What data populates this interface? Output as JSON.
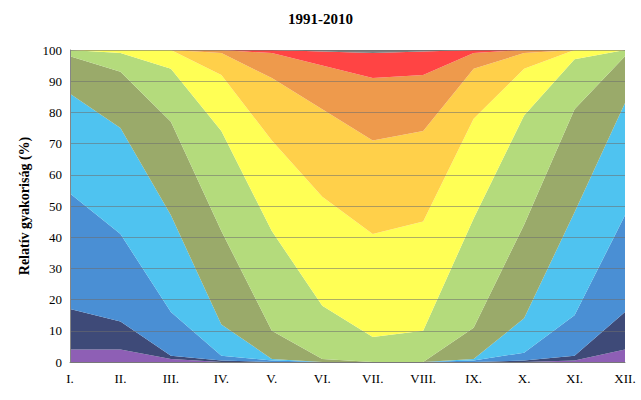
{
  "chart_data": {
    "type": "area",
    "title": "1991-2010",
    "y_label": "Relatív gyakoriság (%)",
    "categories": [
      "I.",
      "II.",
      "III.",
      "IV.",
      "V.",
      "VI.",
      "VII.",
      "VIII.",
      "IX.",
      "X.",
      "XI.",
      "XII."
    ],
    "stacked": true,
    "grid": true,
    "ylim": [
      0,
      100
    ],
    "yticks": [
      0,
      10,
      20,
      30,
      40,
      50,
      60,
      70,
      80,
      90,
      100
    ],
    "series": [
      {
        "color": "#8e5fb5",
        "values": [
          4,
          4,
          1,
          0,
          0,
          0,
          0,
          0,
          0,
          0,
          0.5,
          4
        ]
      },
      {
        "color": "#3e4a78",
        "values": [
          13,
          9,
          1,
          0.5,
          0,
          0,
          0,
          0,
          0,
          0.5,
          1.5,
          12
        ]
      },
      {
        "color": "#4a8fd4",
        "values": [
          37,
          28,
          14,
          1.5,
          0.5,
          0,
          0,
          0,
          0.5,
          2.5,
          13,
          31
        ]
      },
      {
        "color": "#4fc3f0",
        "values": [
          32,
          34,
          31,
          10,
          0.5,
          0,
          0,
          0,
          0.5,
          11,
          33,
          36
        ]
      },
      {
        "color": "#9aaa6a",
        "values": [
          12,
          18,
          30,
          30,
          9,
          1,
          0,
          0,
          10,
          30,
          33,
          15
        ]
      },
      {
        "color": "#b4db7c",
        "values": [
          2,
          6,
          17,
          32,
          32,
          17,
          8,
          10,
          35,
          35,
          16,
          2
        ]
      },
      {
        "color": "#ffff55",
        "values": [
          0,
          1,
          6,
          18,
          29,
          35,
          33,
          35,
          32,
          15,
          3,
          0
        ]
      },
      {
        "color": "#ffd04a",
        "values": [
          0,
          0,
          0,
          7,
          20,
          28,
          30,
          29,
          16,
          5,
          0,
          0
        ]
      },
      {
        "color": "#ee9a4c",
        "values": [
          0,
          0,
          0,
          1,
          8,
          14,
          20,
          18,
          5,
          1,
          0,
          0
        ]
      },
      {
        "color": "#ff4444",
        "values": [
          0,
          0,
          0,
          0,
          1,
          4.5,
          8,
          7.5,
          1,
          0,
          0,
          0
        ]
      },
      {
        "color": "#7f7f7f",
        "values": [
          0,
          0,
          0,
          0,
          0,
          0.5,
          1,
          0.5,
          0,
          0,
          0,
          0
        ]
      }
    ]
  }
}
